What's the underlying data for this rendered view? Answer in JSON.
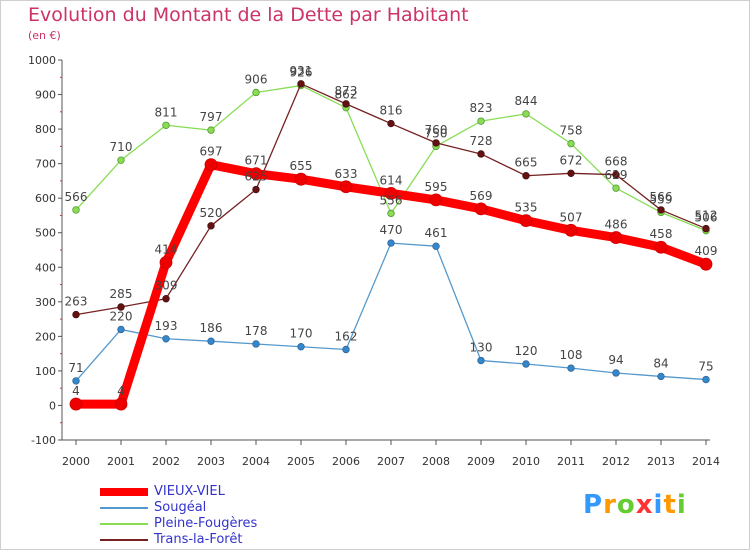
{
  "chart_data": {
    "type": "line",
    "title": "Evolution du Montant de la Dette par Habitant",
    "subtitle": "(en €)",
    "x": [
      "2000",
      "2001",
      "2002",
      "2003",
      "2004",
      "2005",
      "2006",
      "2007",
      "2008",
      "2009",
      "2010",
      "2011",
      "2012",
      "2013",
      "2014"
    ],
    "ylim": [
      -100,
      1000
    ],
    "yticks": [
      -100,
      0,
      100,
      200,
      300,
      400,
      500,
      600,
      700,
      800,
      900,
      1000
    ],
    "grid": false,
    "legend_position": "bottom-left",
    "series": [
      {
        "name": "VIEUX-VIEL",
        "color": "#ff0000",
        "values": [
          4,
          4,
          414,
          697,
          671,
          655,
          633,
          614,
          595,
          569,
          535,
          507,
          486,
          458,
          409
        ]
      },
      {
        "name": "Sougéal",
        "color": "#5599cc",
        "values": [
          71,
          220,
          193,
          186,
          178,
          170,
          162,
          470,
          461,
          130,
          120,
          108,
          94,
          84,
          75
        ]
      },
      {
        "name": "Pleine-Fougères",
        "color": "#88dd55",
        "values": [
          566,
          710,
          811,
          797,
          906,
          926,
          862,
          556,
          750,
          823,
          844,
          758,
          629,
          559,
          506
        ]
      },
      {
        "name": "Trans-la-Forêt",
        "color": "#772222",
        "values": [
          263,
          285,
          309,
          520,
          625,
          931,
          873,
          816,
          760,
          728,
          665,
          672,
          668,
          566,
          512
        ]
      }
    ]
  },
  "logo": {
    "text": "Proxiti"
  }
}
